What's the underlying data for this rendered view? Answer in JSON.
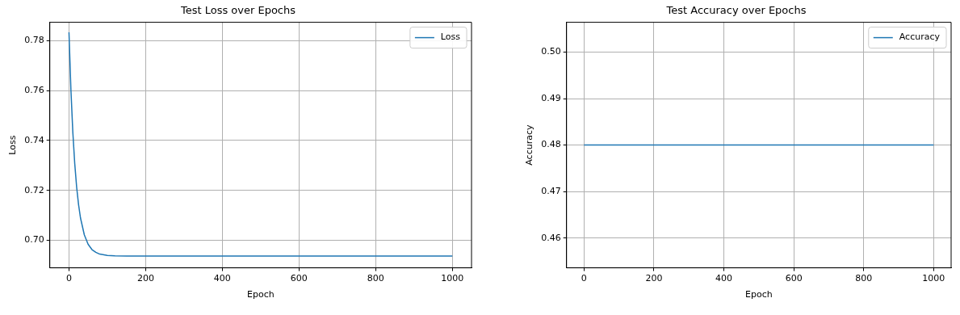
{
  "chart_data": [
    {
      "type": "line",
      "title": "Test Loss over Epochs",
      "xlabel": "Epoch",
      "ylabel": "Loss",
      "x": [
        0,
        5,
        10,
        15,
        20,
        25,
        30,
        40,
        50,
        60,
        70,
        80,
        100,
        120,
        150,
        200,
        400,
        600,
        800,
        1000
      ],
      "series": [
        {
          "name": "Loss",
          "color": "#1f77b4",
          "values": [
            0.7833,
            0.7605,
            0.7434,
            0.7308,
            0.7213,
            0.7143,
            0.709,
            0.7022,
            0.6984,
            0.6963,
            0.6952,
            0.6945,
            0.694,
            0.6938,
            0.6937,
            0.6937,
            0.6937,
            0.6937,
            0.6937,
            0.6937
          ]
        }
      ],
      "xlim": [
        -50,
        1050
      ],
      "ylim": [
        0.689,
        0.7873
      ],
      "xticks": [
        0,
        200,
        400,
        600,
        800,
        1000
      ],
      "yticks": [
        {
          "value": 0.7,
          "label": "0.70"
        },
        0.72,
        0.74,
        0.76,
        0.78
      ],
      "grid": true,
      "legend": "top right"
    },
    {
      "type": "line",
      "title": "Test Accuracy over Epochs",
      "xlabel": "Epoch",
      "ylabel": "Accuracy",
      "x": [
        0,
        1000
      ],
      "series": [
        {
          "name": "Accuracy",
          "color": "#1f77b4",
          "values": [
            0.48,
            0.48
          ]
        }
      ],
      "xlim": [
        -50,
        1050
      ],
      "ylim": [
        0.4536,
        0.5064
      ],
      "xticks": [
        0,
        200,
        400,
        600,
        800,
        1000
      ],
      "yticks": [
        0.46,
        0.47,
        0.48,
        0.49,
        {
          "value": 0.5,
          "label": "0.50"
        }
      ],
      "grid": true,
      "legend": "top right"
    }
  ]
}
